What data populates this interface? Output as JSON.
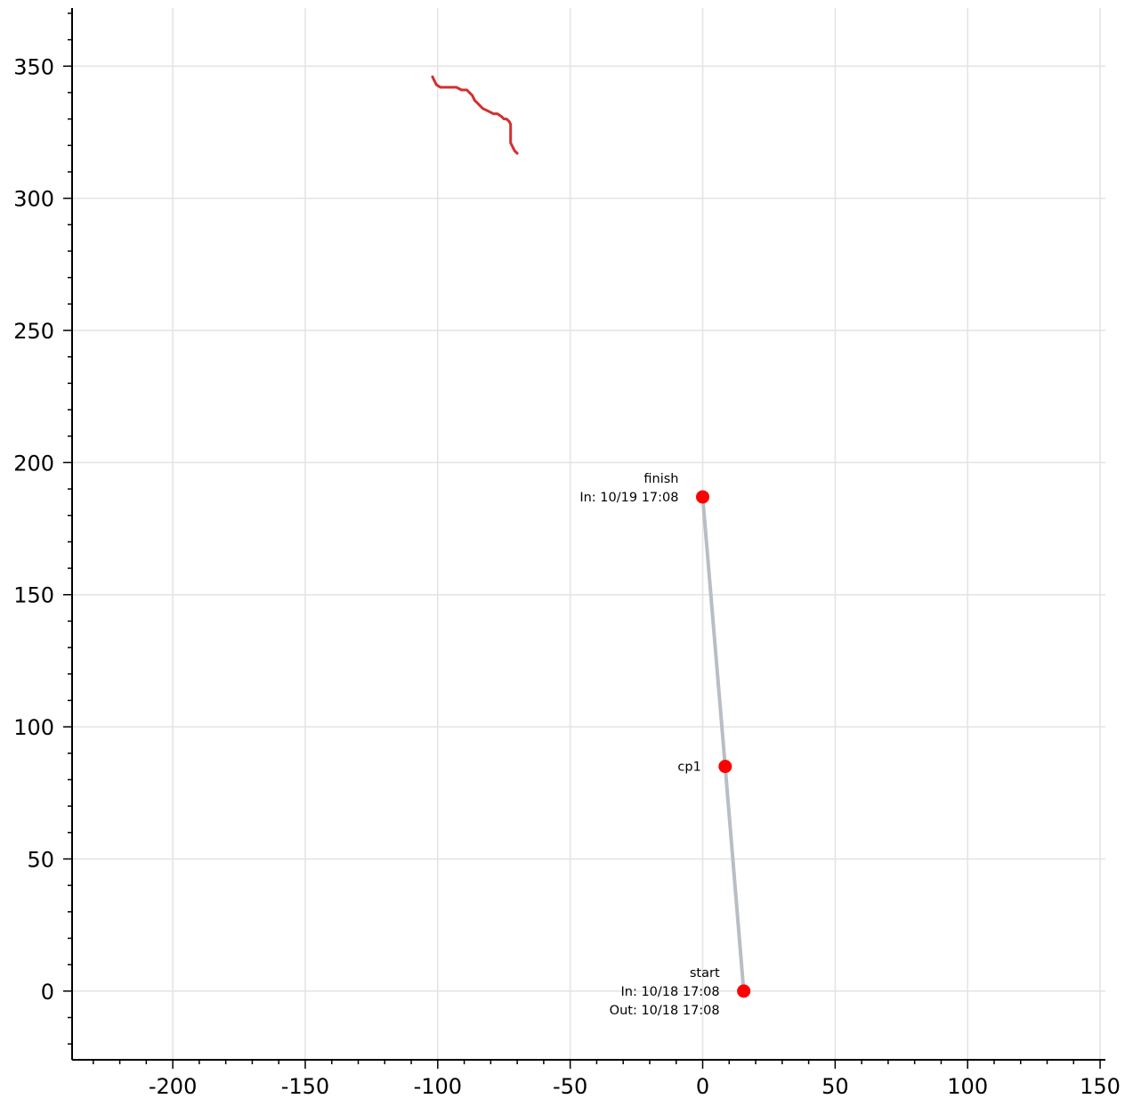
{
  "chart_data": {
    "type": "line",
    "title": "",
    "xlabel": "",
    "ylabel": "",
    "xlim": [
      -238,
      152
    ],
    "ylim": [
      -26,
      372
    ],
    "x_ticks": [
      -200,
      -150,
      -100,
      -50,
      0,
      50,
      100,
      150
    ],
    "x_tick_labels": [
      "-200",
      "-150",
      "-100",
      "-50",
      "0",
      "50",
      "100",
      "150"
    ],
    "y_ticks": [
      0,
      50,
      100,
      150,
      200,
      250,
      300,
      350
    ],
    "y_tick_labels": [
      "0",
      "50",
      "100",
      "150",
      "200",
      "250",
      "300",
      "350"
    ],
    "x_minor_step": 10,
    "y_minor_step": 10,
    "grid": true,
    "colors": {
      "track": "#d32f2f",
      "route": "#b9bec4",
      "checkpoint": "#ff0000",
      "grid": "#e3e3e3",
      "axis": "#000000"
    },
    "series": [
      {
        "role": "track",
        "x": [
          -102,
          -101,
          -100.5,
          -99,
          -97,
          -93,
          -91,
          -89,
          -88,
          -87,
          -86,
          -85,
          -83,
          -81,
          -79,
          -77.5,
          -76,
          -75,
          -74,
          -73,
          -72.5,
          -72.5,
          -71.5,
          -71,
          -70
        ],
        "y": [
          346,
          344,
          343,
          342,
          342,
          342,
          341,
          341,
          340,
          339,
          337,
          336,
          334,
          333,
          332,
          332,
          331,
          330,
          330,
          329,
          328,
          321,
          319,
          318,
          317
        ]
      },
      {
        "role": "route",
        "x": [
          15.5,
          8.5,
          0
        ],
        "y": [
          0,
          85,
          187
        ]
      }
    ],
    "checkpoints": [
      {
        "name": "start",
        "x": 15.5,
        "y": 0,
        "lines": [
          "start",
          "In: 10/18 17:08",
          "Out: 10/18 17:08"
        ]
      },
      {
        "name": "cp1",
        "x": 8.5,
        "y": 85,
        "lines": [
          "cp1"
        ]
      },
      {
        "name": "finish",
        "x": 0,
        "y": 187,
        "lines": [
          "finish",
          "In: 10/19 17:08"
        ]
      }
    ]
  }
}
